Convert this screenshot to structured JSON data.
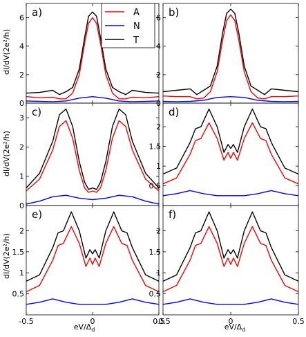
{
  "figure": {
    "xlabel_main": "eV/Δ",
    "xlabel_sub": "d",
    "ylabel_row1": "dI/dV(2e²/h)",
    "ylabel_row2": "dI/dV(2e²/h)",
    "ylabel_row3": "dI/dV(2e²/h)"
  },
  "legend": {
    "entries": [
      {
        "label": "A",
        "color": "#ff0000"
      },
      {
        "label": "N",
        "color": "#0000ff"
      },
      {
        "label": "T",
        "color": "#000000"
      }
    ]
  },
  "chart_data": [
    {
      "type": "line",
      "panel_label": "a)",
      "xlim": [
        -0.5,
        0.5
      ],
      "ylim": [
        0,
        7
      ],
      "xticks": [
        -0.5,
        0,
        0.5
      ],
      "yticks": [
        0,
        2,
        4,
        6
      ],
      "series": [
        {
          "name": "A",
          "color": "#ff0000",
          "x": [
            -0.5,
            -0.4,
            -0.3,
            -0.25,
            -0.2,
            -0.15,
            -0.1,
            -0.06,
            -0.03,
            0,
            0.03,
            0.06,
            0.1,
            0.15,
            0.2,
            0.25,
            0.3,
            0.4,
            0.5
          ],
          "y": [
            0.45,
            0.38,
            0.42,
            0.3,
            0.3,
            0.7,
            2.0,
            4.2,
            5.6,
            6.0,
            5.6,
            4.2,
            2.0,
            0.7,
            0.3,
            0.3,
            0.42,
            0.38,
            0.45
          ]
        },
        {
          "name": "N",
          "color": "#0000ff",
          "x": [
            -0.5,
            -0.4,
            -0.3,
            -0.2,
            -0.1,
            0,
            0.1,
            0.2,
            0.3,
            0.4,
            0.5
          ],
          "y": [
            0.15,
            0.12,
            0.1,
            0.15,
            0.35,
            0.45,
            0.35,
            0.15,
            0.1,
            0.12,
            0.15
          ]
        },
        {
          "name": "T",
          "color": "#000000",
          "x": [
            -0.5,
            -0.4,
            -0.3,
            -0.25,
            -0.2,
            -0.15,
            -0.1,
            -0.06,
            -0.03,
            0,
            0.03,
            0.06,
            0.1,
            0.15,
            0.2,
            0.25,
            0.3,
            0.4,
            0.5
          ],
          "y": [
            0.7,
            0.75,
            0.9,
            0.6,
            0.8,
            1.1,
            2.4,
            4.6,
            6.1,
            6.4,
            6.1,
            4.6,
            2.4,
            1.1,
            0.8,
            0.6,
            0.9,
            0.75,
            0.7
          ]
        }
      ]
    },
    {
      "type": "line",
      "panel_label": "b)",
      "xlim": [
        -0.5,
        0.5
      ],
      "ylim": [
        0,
        7
      ],
      "xticks": [
        -0.5,
        0,
        0.5
      ],
      "yticks": [
        0,
        2,
        4,
        6
      ],
      "series": [
        {
          "name": "A",
          "color": "#ff0000",
          "x": [
            -0.5,
            -0.4,
            -0.3,
            -0.25,
            -0.2,
            -0.15,
            -0.1,
            -0.06,
            -0.03,
            0,
            0.03,
            0.06,
            0.1,
            0.15,
            0.2,
            0.25,
            0.3,
            0.4,
            0.5
          ],
          "y": [
            0.5,
            0.45,
            0.45,
            0.3,
            0.35,
            0.8,
            2.2,
            4.4,
            5.8,
            6.2,
            5.8,
            4.4,
            2.2,
            0.8,
            0.35,
            0.3,
            0.45,
            0.45,
            0.5
          ]
        },
        {
          "name": "N",
          "color": "#0000ff",
          "x": [
            -0.5,
            -0.4,
            -0.3,
            -0.2,
            -0.1,
            0,
            0.1,
            0.2,
            0.3,
            0.4,
            0.5
          ],
          "y": [
            0.12,
            0.1,
            0.12,
            0.2,
            0.4,
            0.45,
            0.4,
            0.2,
            0.12,
            0.1,
            0.12
          ]
        },
        {
          "name": "T",
          "color": "#000000",
          "x": [
            -0.5,
            -0.4,
            -0.3,
            -0.25,
            -0.2,
            -0.15,
            -0.1,
            -0.06,
            -0.03,
            0,
            0.03,
            0.06,
            0.1,
            0.15,
            0.2,
            0.25,
            0.3,
            0.4,
            0.5
          ],
          "y": [
            0.8,
            0.9,
            1.0,
            0.6,
            0.9,
            1.2,
            2.6,
            4.9,
            6.3,
            6.6,
            6.3,
            4.9,
            2.6,
            1.2,
            0.9,
            0.6,
            1.0,
            0.9,
            0.8
          ]
        }
      ]
    },
    {
      "type": "line",
      "panel_label": "c)",
      "xlim": [
        -0.5,
        0.5
      ],
      "ylim": [
        0,
        3.5
      ],
      "xticks": [
        -0.5,
        0,
        0.5
      ],
      "yticks": [
        0,
        1,
        2,
        3
      ],
      "series": [
        {
          "name": "A",
          "color": "#ff0000",
          "x": [
            -0.5,
            -0.4,
            -0.3,
            -0.25,
            -0.2,
            -0.15,
            -0.1,
            -0.06,
            -0.03,
            0,
            0.03,
            0.06,
            0.1,
            0.15,
            0.2,
            0.25,
            0.3,
            0.4,
            0.5
          ],
          "y": [
            0.5,
            0.9,
            1.9,
            2.7,
            2.9,
            2.3,
            1.2,
            0.6,
            0.45,
            0.5,
            0.45,
            0.6,
            1.2,
            2.3,
            2.9,
            2.7,
            1.9,
            0.9,
            0.5
          ]
        },
        {
          "name": "N",
          "color": "#0000ff",
          "x": [
            -0.5,
            -0.4,
            -0.3,
            -0.2,
            -0.1,
            0,
            0.1,
            0.2,
            0.3,
            0.4,
            0.5
          ],
          "y": [
            0.05,
            0.15,
            0.3,
            0.35,
            0.25,
            0.2,
            0.25,
            0.35,
            0.3,
            0.15,
            0.05
          ]
        },
        {
          "name": "T",
          "color": "#000000",
          "x": [
            -0.5,
            -0.4,
            -0.3,
            -0.25,
            -0.2,
            -0.15,
            -0.1,
            -0.06,
            -0.03,
            0,
            0.03,
            0.06,
            0.1,
            0.15,
            0.2,
            0.25,
            0.3,
            0.4,
            0.5
          ],
          "y": [
            0.6,
            1.1,
            2.2,
            3.1,
            3.3,
            2.7,
            1.5,
            0.8,
            0.55,
            0.6,
            0.55,
            0.8,
            1.5,
            2.7,
            3.3,
            3.1,
            2.2,
            1.1,
            0.6
          ]
        }
      ]
    },
    {
      "type": "line",
      "panel_label": "d)",
      "xlim": [
        -0.5,
        0.5
      ],
      "ylim": [
        0,
        2.6
      ],
      "xticks": [
        -0.5,
        0,
        0.5
      ],
      "yticks": [
        0.5,
        1,
        1.5,
        2
      ],
      "series": [
        {
          "name": "A",
          "color": "#ff0000",
          "x": [
            -0.5,
            -0.4,
            -0.3,
            -0.26,
            -0.22,
            -0.16,
            -0.1,
            -0.05,
            -0.02,
            0,
            0.02,
            0.05,
            0.1,
            0.16,
            0.22,
            0.26,
            0.3,
            0.4,
            0.5
          ],
          "y": [
            0.55,
            0.7,
            1.3,
            1.65,
            1.7,
            2.1,
            1.7,
            1.15,
            1.35,
            1.2,
            1.35,
            1.15,
            1.7,
            2.1,
            1.7,
            1.65,
            1.3,
            0.7,
            0.55
          ]
        },
        {
          "name": "N",
          "color": "#0000ff",
          "x": [
            -0.5,
            -0.4,
            -0.3,
            -0.2,
            -0.1,
            0,
            0.1,
            0.2,
            0.3,
            0.4,
            0.5
          ],
          "y": [
            0.25,
            0.3,
            0.38,
            0.3,
            0.25,
            0.25,
            0.25,
            0.3,
            0.38,
            0.3,
            0.25
          ]
        },
        {
          "name": "T",
          "color": "#000000",
          "x": [
            -0.5,
            -0.4,
            -0.3,
            -0.26,
            -0.22,
            -0.16,
            -0.1,
            -0.05,
            -0.02,
            0,
            0.02,
            0.05,
            0.1,
            0.16,
            0.22,
            0.26,
            0.3,
            0.4,
            0.5
          ],
          "y": [
            0.8,
            0.95,
            1.6,
            1.95,
            2.0,
            2.45,
            2.0,
            1.35,
            1.55,
            1.45,
            1.55,
            1.35,
            2.0,
            2.45,
            2.0,
            1.95,
            1.6,
            0.95,
            0.8
          ]
        }
      ]
    },
    {
      "type": "line",
      "panel_label": "e)",
      "xlim": [
        -0.5,
        0.5
      ],
      "ylim": [
        0,
        2.6
      ],
      "xticks": [
        -0.5,
        0,
        0.5
      ],
      "yticks": [
        0.5,
        1,
        1.5,
        2
      ],
      "series": [
        {
          "name": "A",
          "color": "#ff0000",
          "x": [
            -0.5,
            -0.4,
            -0.3,
            -0.26,
            -0.22,
            -0.16,
            -0.1,
            -0.05,
            -0.02,
            0,
            0.02,
            0.05,
            0.1,
            0.16,
            0.22,
            0.26,
            0.3,
            0.4,
            0.5
          ],
          "y": [
            0.55,
            0.7,
            1.3,
            1.65,
            1.7,
            2.1,
            1.7,
            1.15,
            1.35,
            1.2,
            1.35,
            1.15,
            1.7,
            2.1,
            1.7,
            1.65,
            1.3,
            0.7,
            0.55
          ]
        },
        {
          "name": "N",
          "color": "#0000ff",
          "x": [
            -0.5,
            -0.4,
            -0.3,
            -0.2,
            -0.1,
            0,
            0.1,
            0.2,
            0.3,
            0.4,
            0.5
          ],
          "y": [
            0.25,
            0.3,
            0.38,
            0.3,
            0.25,
            0.25,
            0.25,
            0.3,
            0.38,
            0.3,
            0.25
          ]
        },
        {
          "name": "T",
          "color": "#000000",
          "x": [
            -0.5,
            -0.4,
            -0.3,
            -0.26,
            -0.22,
            -0.16,
            -0.1,
            -0.05,
            -0.02,
            0,
            0.02,
            0.05,
            0.1,
            0.16,
            0.22,
            0.26,
            0.3,
            0.4,
            0.5
          ],
          "y": [
            0.8,
            0.95,
            1.6,
            1.95,
            2.0,
            2.45,
            2.0,
            1.35,
            1.55,
            1.45,
            1.55,
            1.35,
            2.0,
            2.45,
            2.0,
            1.95,
            1.6,
            0.95,
            0.8
          ]
        }
      ]
    },
    {
      "type": "line",
      "panel_label": "f)",
      "xlim": [
        -0.5,
        0.5
      ],
      "ylim": [
        0,
        2.6
      ],
      "xticks": [
        -0.5,
        0,
        0.5
      ],
      "yticks": [
        0.5,
        1,
        1.5,
        2
      ],
      "series": [
        {
          "name": "A",
          "color": "#ff0000",
          "x": [
            -0.5,
            -0.4,
            -0.3,
            -0.26,
            -0.22,
            -0.16,
            -0.1,
            -0.05,
            -0.02,
            0,
            0.02,
            0.05,
            0.1,
            0.16,
            0.22,
            0.26,
            0.3,
            0.4,
            0.5
          ],
          "y": [
            0.55,
            0.7,
            1.3,
            1.65,
            1.7,
            2.1,
            1.7,
            1.15,
            1.35,
            1.2,
            1.35,
            1.15,
            1.7,
            2.1,
            1.7,
            1.65,
            1.3,
            0.7,
            0.55
          ]
        },
        {
          "name": "N",
          "color": "#0000ff",
          "x": [
            -0.5,
            -0.4,
            -0.3,
            -0.2,
            -0.1,
            0,
            0.1,
            0.2,
            0.3,
            0.4,
            0.5
          ],
          "y": [
            0.25,
            0.3,
            0.38,
            0.3,
            0.25,
            0.25,
            0.25,
            0.3,
            0.38,
            0.3,
            0.25
          ]
        },
        {
          "name": "T",
          "color": "#000000",
          "x": [
            -0.5,
            -0.4,
            -0.3,
            -0.26,
            -0.22,
            -0.16,
            -0.1,
            -0.05,
            -0.02,
            0,
            0.02,
            0.05,
            0.1,
            0.16,
            0.22,
            0.26,
            0.3,
            0.4,
            0.5
          ],
          "y": [
            0.8,
            0.95,
            1.6,
            1.95,
            2.0,
            2.45,
            2.0,
            1.35,
            1.55,
            1.45,
            1.55,
            1.35,
            2.0,
            2.45,
            2.0,
            1.95,
            1.6,
            0.95,
            0.8
          ]
        }
      ]
    }
  ]
}
